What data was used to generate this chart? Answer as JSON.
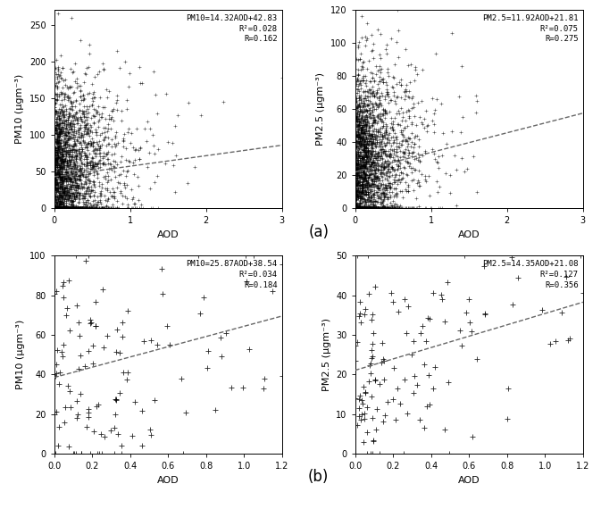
{
  "panel_a_pm10": {
    "slope": 14.32,
    "intercept": 42.83,
    "r2": 0.028,
    "r": 0.162,
    "xlabel": "AOD",
    "ylabel": "PM10 (μgm⁻³)",
    "xlim": [
      0,
      3
    ],
    "ylim": [
      0,
      270
    ],
    "xticks": [
      0,
      1,
      2,
      3
    ],
    "yticks": [
      0,
      50,
      100,
      150,
      200,
      250
    ],
    "eq_text": "PM10=14.32AOD+42.83",
    "r2_text": "R²=0.028",
    "r_text": "R=0.162",
    "n_points": 2500,
    "x_exp_scale": 0.28,
    "y_noise_std": 28
  },
  "panel_a_pm25": {
    "slope": 11.92,
    "intercept": 21.81,
    "r2": 0.075,
    "r": 0.275,
    "xlabel": "AOD",
    "ylabel": "PM2.5 (μgm⁻³)",
    "xlim": [
      0,
      3
    ],
    "ylim": [
      0,
      120
    ],
    "xticks": [
      0,
      1,
      2,
      3
    ],
    "yticks": [
      0,
      20,
      40,
      60,
      80,
      100,
      120
    ],
    "eq_text": "PM2.5=11.92AOD+21.81",
    "r2_text": "R²=0.075",
    "r_text": "R=0.275",
    "n_points": 2500,
    "x_exp_scale": 0.25,
    "y_noise_std": 13
  },
  "panel_b_pm10": {
    "slope": 25.87,
    "intercept": 38.54,
    "r2": 0.034,
    "r": 0.184,
    "xlabel": "AOD",
    "ylabel": "PM10 (μgm⁻³)",
    "xlim": [
      0.0,
      1.2
    ],
    "ylim": [
      0,
      100
    ],
    "xticks": [
      0.0,
      0.2,
      0.4,
      0.6,
      0.8,
      1.0,
      1.2
    ],
    "yticks": [
      0,
      20,
      40,
      60,
      80,
      100
    ],
    "eq_text": "PM10=25.87AOD+38.54",
    "r2_text": "R²=0.034",
    "r_text": "R=0.184",
    "n_points": 130,
    "x_exp_scale": 0.35,
    "y_noise_std": 14
  },
  "panel_b_pm25": {
    "slope": 14.35,
    "intercept": 21.08,
    "r2": 0.127,
    "r": 0.356,
    "xlabel": "AOD",
    "ylabel": "PM2.5 (μgm⁻³)",
    "xlim": [
      0.0,
      1.2
    ],
    "ylim": [
      0,
      50
    ],
    "xticks": [
      0.0,
      0.2,
      0.4,
      0.6,
      0.8,
      1.0,
      1.2
    ],
    "yticks": [
      0,
      10,
      20,
      30,
      40,
      50
    ],
    "eq_text": "PM2.5=14.35AOD+21.08",
    "r2_text": "R²=0.127",
    "r_text": "R=0.356",
    "n_points": 130,
    "x_exp_scale": 0.33,
    "y_noise_std": 7
  },
  "label_a": "(a)",
  "label_b": "(b)",
  "background_color": "#ffffff",
  "dot_color": "#000000",
  "line_color": "#666666"
}
